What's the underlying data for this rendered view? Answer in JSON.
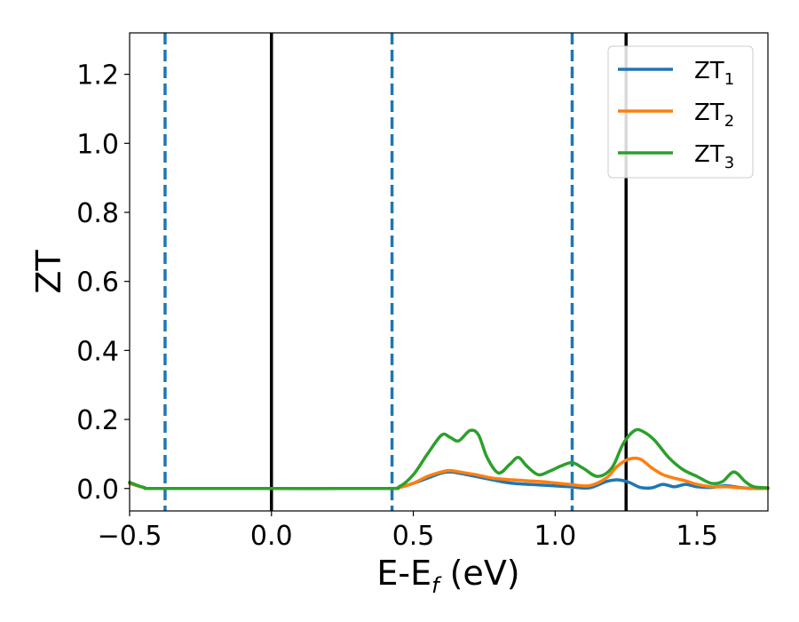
{
  "chart_data": {
    "type": "line",
    "xlabel": "E-E",
    "xlabel_sub": "f",
    "xlabel_unit": " (eV)",
    "ylabel": "ZT",
    "xlim": [
      -0.5,
      1.75
    ],
    "ylim": [
      -0.065,
      1.32
    ],
    "xticks": [
      -0.5,
      0.0,
      0.5,
      1.0,
      1.5
    ],
    "xtick_labels": [
      "−0.5",
      "0.0",
      "0.5",
      "1.0",
      "1.5"
    ],
    "yticks": [
      0.0,
      0.2,
      0.4,
      0.6,
      0.8,
      1.0,
      1.2
    ],
    "ytick_labels": [
      "0.0",
      "0.2",
      "0.4",
      "0.6",
      "0.8",
      "1.0",
      "1.2"
    ],
    "legend_position": "top-right",
    "vlines_solid": [
      0.0,
      1.25
    ],
    "vlines_dashed": [
      -0.375,
      0.425,
      1.06
    ],
    "solid_vline_color": "#000000",
    "dashed_vline_color": "#1f77b4",
    "series": [
      {
        "name": "ZT",
        "name_sub": "1",
        "color": "#1f77b4",
        "x": [
          -0.5,
          -0.45,
          -0.4,
          0.0,
          0.4,
          0.45,
          0.5,
          0.55,
          0.6,
          0.63,
          0.67,
          0.72,
          0.78,
          0.85,
          0.95,
          1.05,
          1.12,
          1.18,
          1.22,
          1.26,
          1.3,
          1.34,
          1.38,
          1.42,
          1.46,
          1.5,
          1.55,
          1.6,
          1.65,
          1.7,
          1.75
        ],
        "y": [
          0.015,
          0.003,
          0.0,
          0.0,
          0.0,
          0.003,
          0.015,
          0.03,
          0.045,
          0.048,
          0.043,
          0.035,
          0.025,
          0.015,
          0.01,
          0.005,
          0.002,
          0.02,
          0.025,
          0.018,
          0.003,
          0.002,
          0.012,
          0.005,
          0.012,
          0.005,
          0.003,
          0.008,
          0.003,
          0.0,
          0.0
        ]
      },
      {
        "name": "ZT",
        "name_sub": "2",
        "color": "#ff7f0e",
        "x": [
          -0.5,
          -0.45,
          -0.4,
          0.0,
          0.4,
          0.45,
          0.5,
          0.55,
          0.6,
          0.63,
          0.67,
          0.72,
          0.78,
          0.85,
          0.95,
          1.05,
          1.12,
          1.18,
          1.22,
          1.26,
          1.3,
          1.34,
          1.38,
          1.42,
          1.46,
          1.5,
          1.55,
          1.6,
          1.65,
          1.7,
          1.75
        ],
        "y": [
          0.015,
          0.003,
          0.0,
          0.0,
          0.0,
          0.003,
          0.015,
          0.035,
          0.048,
          0.052,
          0.047,
          0.04,
          0.03,
          0.025,
          0.02,
          0.012,
          0.008,
          0.03,
          0.065,
          0.085,
          0.085,
          0.06,
          0.04,
          0.03,
          0.022,
          0.012,
          0.005,
          0.005,
          0.002,
          0.0,
          0.0
        ]
      },
      {
        "name": "ZT",
        "name_sub": "3",
        "color": "#2ca02c",
        "x": [
          -0.5,
          -0.45,
          -0.4,
          0.0,
          0.4,
          0.45,
          0.5,
          0.55,
          0.6,
          0.63,
          0.66,
          0.7,
          0.73,
          0.76,
          0.8,
          0.84,
          0.87,
          0.9,
          0.94,
          0.98,
          1.02,
          1.06,
          1.1,
          1.15,
          1.2,
          1.24,
          1.28,
          1.31,
          1.35,
          1.4,
          1.45,
          1.5,
          1.55,
          1.59,
          1.63,
          1.67,
          1.7,
          1.75
        ],
        "y": [
          0.018,
          0.003,
          0.0,
          0.0,
          0.0,
          0.005,
          0.04,
          0.1,
          0.155,
          0.148,
          0.138,
          0.168,
          0.155,
          0.09,
          0.045,
          0.07,
          0.09,
          0.065,
          0.04,
          0.05,
          0.065,
          0.075,
          0.058,
          0.035,
          0.06,
          0.13,
          0.168,
          0.165,
          0.14,
          0.09,
          0.055,
          0.035,
          0.015,
          0.02,
          0.048,
          0.02,
          0.005,
          0.002
        ]
      }
    ]
  }
}
